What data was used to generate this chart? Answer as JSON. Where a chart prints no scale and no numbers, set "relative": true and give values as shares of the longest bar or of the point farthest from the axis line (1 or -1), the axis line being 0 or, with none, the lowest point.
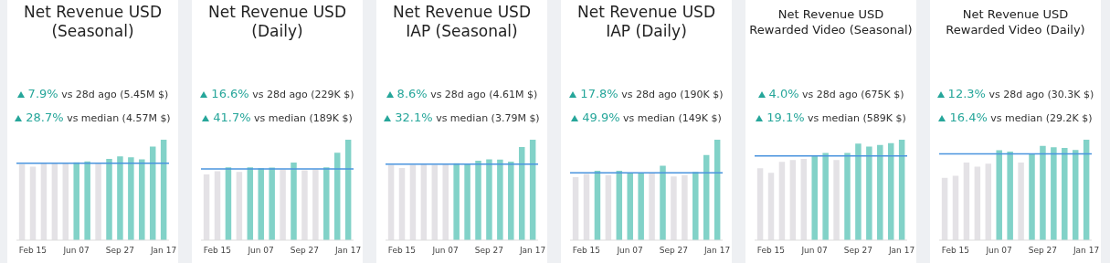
{
  "chart_data": [
    {
      "type": "bar",
      "relative": true,
      "title": "Net Revenue USD (Seasonal)",
      "annotations": [
        "7.9% vs 28d ago (5.45M $)",
        "28.7% vs median (4.57M $)"
      ],
      "categories": [
        null,
        "Feb 15",
        null,
        null,
        null,
        "Jun 07",
        null,
        null,
        null,
        "Sep 27",
        null,
        null,
        null,
        "Jan 17"
      ],
      "values": [
        0.75,
        0.725,
        0.756,
        0.763,
        0.756,
        0.769,
        0.778,
        0.763,
        0.803,
        0.828,
        0.819,
        0.797,
        0.925,
        1
      ],
      "colors": [
        "#e4e2e6",
        "#e4e2e6",
        "#e4e2e6",
        "#e4e2e6",
        "#e4e2e6",
        "#82d2c8",
        "#82d2c8",
        "#e4e2e6",
        "#82d2c8",
        "#82d2c8",
        "#82d2c8",
        "#82d2c8",
        "#82d2c8",
        "#82d2c8"
      ],
      "ref_lines": [
        {
          "axis": "y",
          "value": 0.766,
          "color": "#4a94de"
        }
      ]
    },
    {
      "type": "bar",
      "relative": true,
      "title": "Net Revenue USD (Daily)",
      "annotations": [
        "16.6% vs 28d ago (229K $)",
        "41.7% vs median (189K $)"
      ],
      "categories": [
        null,
        "Feb 15",
        null,
        null,
        null,
        "Jun 07",
        null,
        null,
        null,
        "Sep 27",
        null,
        null,
        null,
        "Jan 17"
      ],
      "values": [
        0.647,
        0.68,
        0.718,
        0.673,
        0.718,
        0.709,
        0.715,
        0.696,
        0.767,
        0.689,
        0.696,
        0.718,
        0.864,
        1
      ],
      "colors": [
        "#e4e2e6",
        "#e4e2e6",
        "#82d2c8",
        "#e4e2e6",
        "#82d2c8",
        "#82d2c8",
        "#82d2c8",
        "#e4e2e6",
        "#82d2c8",
        "#e4e2e6",
        "#e4e2e6",
        "#82d2c8",
        "#82d2c8",
        "#82d2c8"
      ],
      "ref_lines": [
        {
          "axis": "y",
          "value": 0.709,
          "color": "#4a94de"
        }
      ]
    },
    {
      "type": "bar",
      "relative": true,
      "title": "Net Revenue USD IAP (Seasonal)",
      "annotations": [
        "8.6% vs 28d ago (4.61M $)",
        "32.1% vs median (3.79M $)"
      ],
      "categories": [
        null,
        "Feb 15",
        null,
        null,
        null,
        "Jun 07",
        null,
        null,
        null,
        "Sep 27",
        null,
        null,
        null,
        "Jan 17"
      ],
      "values": [
        0.744,
        0.712,
        0.744,
        0.75,
        0.744,
        0.75,
        0.76,
        0.753,
        0.785,
        0.798,
        0.795,
        0.776,
        0.92,
        1
      ],
      "colors": [
        "#e4e2e6",
        "#e4e2e6",
        "#e4e2e6",
        "#e4e2e6",
        "#e4e2e6",
        "#e4e2e6",
        "#82d2c8",
        "#82d2c8",
        "#82d2c8",
        "#82d2c8",
        "#82d2c8",
        "#82d2c8",
        "#82d2c8",
        "#82d2c8"
      ],
      "ref_lines": [
        {
          "axis": "y",
          "value": 0.756,
          "color": "#4a94de"
        }
      ]
    },
    {
      "type": "bar",
      "relative": true,
      "title": "Net Revenue USD IAP (Daily)",
      "annotations": [
        "17.8% vs 28d ago (190K $)",
        "49.9% vs median (149K $)"
      ],
      "categories": [
        null,
        "Feb 15",
        null,
        null,
        null,
        "Jun 07",
        null,
        null,
        null,
        "Sep 27",
        null,
        null,
        null,
        "Jan 17"
      ],
      "values": [
        0.62,
        0.653,
        0.683,
        0.64,
        0.683,
        0.667,
        0.667,
        0.66,
        0.733,
        0.627,
        0.64,
        0.673,
        0.842,
        1
      ],
      "colors": [
        "#e4e2e6",
        "#e4e2e6",
        "#82d2c8",
        "#e4e2e6",
        "#82d2c8",
        "#82d2c8",
        "#82d2c8",
        "#e4e2e6",
        "#82d2c8",
        "#e4e2e6",
        "#e4e2e6",
        "#82d2c8",
        "#82d2c8",
        "#82d2c8"
      ],
      "ref_lines": [
        {
          "axis": "y",
          "value": 0.67,
          "color": "#4a94de"
        }
      ]
    },
    {
      "type": "bar",
      "relative": true,
      "title": "Net Revenue USD Rewarded Video (Seasonal)",
      "annotations": [
        "4.0% vs 28d ago (675K $)",
        "19.1% vs median (589K $)"
      ],
      "categories": [
        null,
        "Feb 15",
        null,
        null,
        null,
        "Jun 07",
        null,
        null,
        null,
        "Sep 27",
        null,
        null,
        null,
        "Jan 17"
      ],
      "values": [
        0.71,
        0.663,
        0.772,
        0.792,
        0.802,
        0.838,
        0.861,
        0.792,
        0.861,
        0.954,
        0.924,
        0.941,
        0.96,
        1
      ],
      "colors": [
        "#e4e2e6",
        "#e4e2e6",
        "#e4e2e6",
        "#e4e2e6",
        "#e4e2e6",
        "#82d2c8",
        "#82d2c8",
        "#e4e2e6",
        "#82d2c8",
        "#82d2c8",
        "#82d2c8",
        "#82d2c8",
        "#82d2c8",
        "#82d2c8"
      ],
      "ref_lines": [
        {
          "axis": "y",
          "value": 0.838,
          "color": "#4a94de"
        }
      ]
    },
    {
      "type": "bar",
      "relative": true,
      "title": "Net Revenue USD Rewarded Video (Daily)",
      "annotations": [
        "12.3% vs 28d ago (30.3K $)",
        "16.4% vs median (29.2K $)"
      ],
      "categories": [
        null,
        "Feb 15",
        null,
        null,
        null,
        "Jun 07",
        null,
        null,
        null,
        "Sep 27",
        null,
        null,
        null,
        "Jan 17"
      ],
      "values": [
        0.614,
        0.634,
        0.765,
        0.725,
        0.755,
        0.889,
        0.876,
        0.765,
        0.856,
        0.931,
        0.918,
        0.912,
        0.892,
        1
      ],
      "colors": [
        "#e4e2e6",
        "#e4e2e6",
        "#e4e2e6",
        "#e4e2e6",
        "#e4e2e6",
        "#82d2c8",
        "#82d2c8",
        "#e4e2e6",
        "#82d2c8",
        "#82d2c8",
        "#82d2c8",
        "#82d2c8",
        "#82d2c8",
        "#82d2c8"
      ],
      "ref_lines": [
        {
          "axis": "y",
          "value": 0.859,
          "color": "#4a94de"
        }
      ]
    }
  ]
}
